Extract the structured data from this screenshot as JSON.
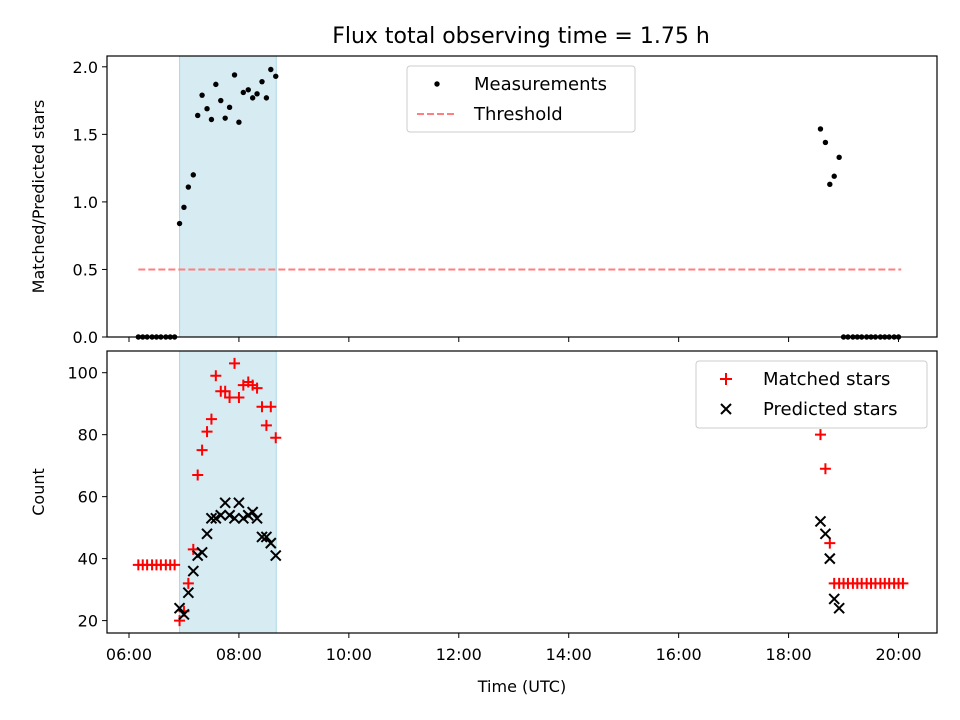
{
  "title": "Flux total observing time = 1.75 h",
  "chart_data": [
    {
      "type": "scatter",
      "ylabel": "Matched/Predicted stars",
      "xlim": [
        5.6,
        20.7
      ],
      "ylim": [
        0,
        2.08
      ],
      "yticks": [
        0,
        0.5,
        1,
        1.5,
        2
      ],
      "ytick_labels": [
        "0.0",
        "0.5",
        "1.0",
        "1.5",
        "2.0"
      ],
      "shaded_span": [
        6.92,
        8.68
      ],
      "legend": {
        "placement": "upper-center",
        "entries": [
          "Measurements",
          "Threshold"
        ]
      },
      "threshold": {
        "name": "Threshold",
        "x": [
          6.17,
          20.05
        ],
        "y": 0.5,
        "color": "#ff7f7f",
        "style": "dashed"
      },
      "series": [
        {
          "name": "Measurements",
          "marker": "dot",
          "color": "#000000",
          "points": [
            [
              6.17,
              0
            ],
            [
              6.25,
              0
            ],
            [
              6.33,
              0
            ],
            [
              6.42,
              0
            ],
            [
              6.5,
              0
            ],
            [
              6.58,
              0
            ],
            [
              6.67,
              0
            ],
            [
              6.75,
              0
            ],
            [
              6.83,
              0
            ],
            [
              6.92,
              0.84
            ],
            [
              7.0,
              0.96
            ],
            [
              7.08,
              1.11
            ],
            [
              7.17,
              1.2
            ],
            [
              7.25,
              1.64
            ],
            [
              7.33,
              1.79
            ],
            [
              7.42,
              1.69
            ],
            [
              7.5,
              1.61
            ],
            [
              7.58,
              1.87
            ],
            [
              7.67,
              1.75
            ],
            [
              7.75,
              1.62
            ],
            [
              7.83,
              1.7
            ],
            [
              7.92,
              1.94
            ],
            [
              8.0,
              1.59
            ],
            [
              8.08,
              1.81
            ],
            [
              8.17,
              1.83
            ],
            [
              8.25,
              1.77
            ],
            [
              8.33,
              1.8
            ],
            [
              8.42,
              1.89
            ],
            [
              8.5,
              1.77
            ],
            [
              8.58,
              1.98
            ],
            [
              8.67,
              1.93
            ],
            [
              18.58,
              1.54
            ],
            [
              18.67,
              1.44
            ],
            [
              18.75,
              1.13
            ],
            [
              18.83,
              1.19
            ],
            [
              18.92,
              1.33
            ],
            [
              19.0,
              0
            ],
            [
              19.08,
              0
            ],
            [
              19.17,
              0
            ],
            [
              19.25,
              0
            ],
            [
              19.33,
              0
            ],
            [
              19.42,
              0
            ],
            [
              19.5,
              0
            ],
            [
              19.58,
              0
            ],
            [
              19.67,
              0
            ],
            [
              19.75,
              0
            ],
            [
              19.83,
              0
            ],
            [
              19.92,
              0
            ],
            [
              20.0,
              0
            ]
          ]
        }
      ]
    },
    {
      "type": "scatter",
      "xlabel": "Time (UTC)",
      "ylabel": "Count",
      "xlim": [
        5.6,
        20.7
      ],
      "ylim": [
        16,
        107
      ],
      "yticks": [
        20,
        40,
        60,
        80,
        100
      ],
      "ytick_labels": [
        "20",
        "40",
        "60",
        "80",
        "100"
      ],
      "xticks": [
        6,
        8,
        10,
        12,
        14,
        16,
        18,
        20
      ],
      "xtick_labels": [
        "06:00",
        "08:00",
        "10:00",
        "12:00",
        "14:00",
        "16:00",
        "18:00",
        "20:00"
      ],
      "shaded_span": [
        6.92,
        8.68
      ],
      "legend": {
        "placement": "upper-right",
        "entries": [
          "Matched stars",
          "Predicted stars"
        ]
      },
      "series": [
        {
          "name": "Matched stars",
          "marker": "plus",
          "color": "#ff0000",
          "points": [
            [
              6.17,
              38
            ],
            [
              6.25,
              38
            ],
            [
              6.33,
              38
            ],
            [
              6.42,
              38
            ],
            [
              6.5,
              38
            ],
            [
              6.58,
              38
            ],
            [
              6.67,
              38
            ],
            [
              6.75,
              38
            ],
            [
              6.83,
              38
            ],
            [
              6.92,
              20
            ],
            [
              7.0,
              23
            ],
            [
              7.08,
              32
            ],
            [
              7.17,
              43
            ],
            [
              7.25,
              67
            ],
            [
              7.33,
              75
            ],
            [
              7.42,
              81
            ],
            [
              7.5,
              85
            ],
            [
              7.58,
              99
            ],
            [
              7.67,
              94
            ],
            [
              7.75,
              94
            ],
            [
              7.83,
              92
            ],
            [
              7.92,
              103
            ],
            [
              8.0,
              92
            ],
            [
              8.08,
              96
            ],
            [
              8.17,
              97
            ],
            [
              8.25,
              96
            ],
            [
              8.33,
              95
            ],
            [
              8.42,
              89
            ],
            [
              8.5,
              83
            ],
            [
              8.58,
              89
            ],
            [
              8.67,
              79
            ],
            [
              18.58,
              80
            ],
            [
              18.67,
              69
            ],
            [
              18.75,
              45
            ],
            [
              18.83,
              32
            ],
            [
              18.92,
              32
            ],
            [
              19.0,
              32
            ],
            [
              19.08,
              32
            ],
            [
              19.17,
              32
            ],
            [
              19.25,
              32
            ],
            [
              19.33,
              32
            ],
            [
              19.42,
              32
            ],
            [
              19.5,
              32
            ],
            [
              19.58,
              32
            ],
            [
              19.67,
              32
            ],
            [
              19.75,
              32
            ],
            [
              19.83,
              32
            ],
            [
              19.92,
              32
            ],
            [
              20.0,
              32
            ],
            [
              20.08,
              32
            ]
          ]
        },
        {
          "name": "Predicted stars",
          "marker": "x",
          "color": "#000000",
          "points": [
            [
              6.92,
              24
            ],
            [
              7.0,
              22
            ],
            [
              7.08,
              29
            ],
            [
              7.17,
              36
            ],
            [
              7.25,
              41
            ],
            [
              7.33,
              42
            ],
            [
              7.42,
              48
            ],
            [
              7.5,
              53
            ],
            [
              7.58,
              53
            ],
            [
              7.67,
              54
            ],
            [
              7.75,
              58
            ],
            [
              7.83,
              54
            ],
            [
              7.92,
              53
            ],
            [
              8.0,
              58
            ],
            [
              8.08,
              53
            ],
            [
              8.17,
              54
            ],
            [
              8.25,
              55
            ],
            [
              8.33,
              53
            ],
            [
              8.42,
              47
            ],
            [
              8.5,
              47
            ],
            [
              8.58,
              45
            ],
            [
              8.67,
              41
            ],
            [
              18.58,
              52
            ],
            [
              18.67,
              48
            ],
            [
              18.75,
              40
            ],
            [
              18.83,
              27
            ],
            [
              18.92,
              24
            ]
          ]
        }
      ]
    }
  ]
}
